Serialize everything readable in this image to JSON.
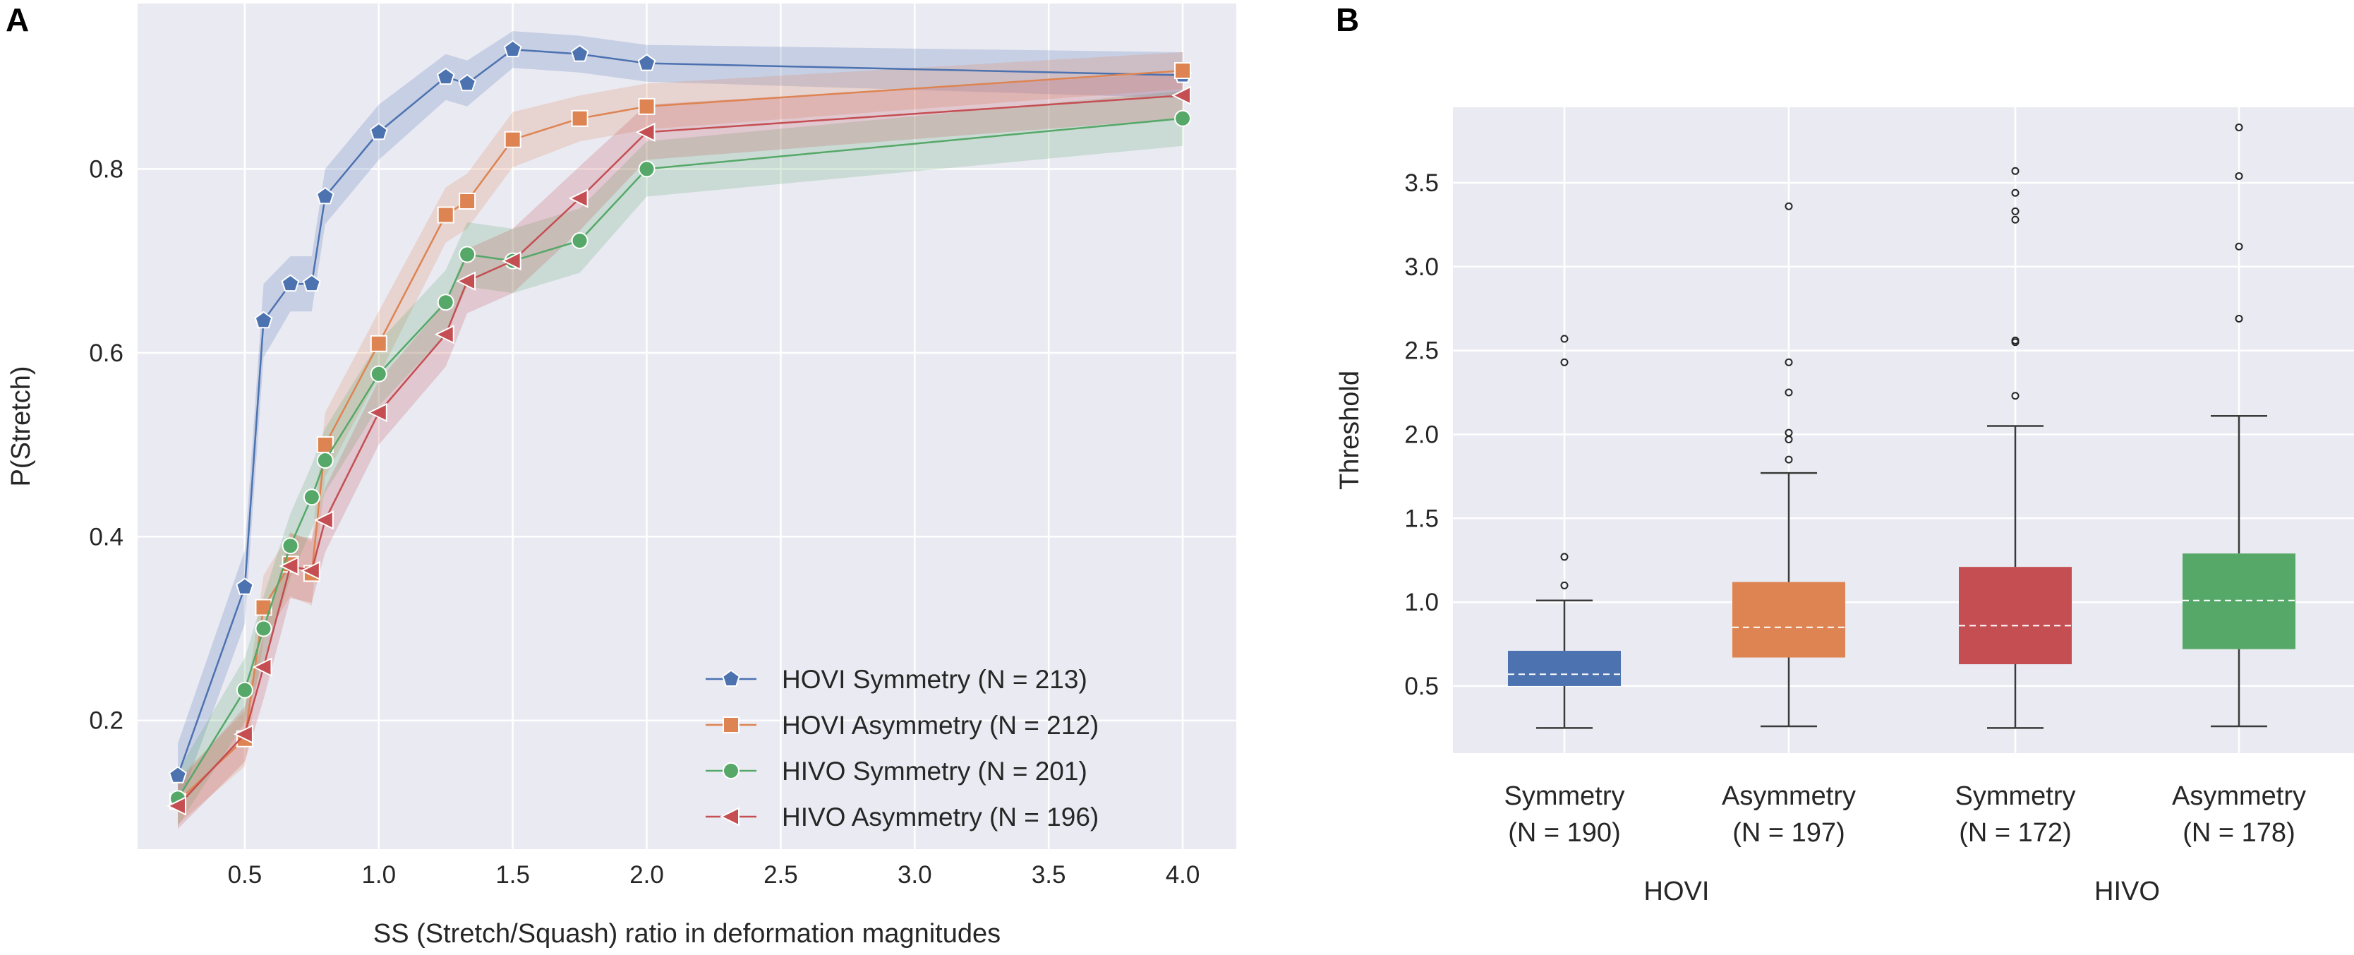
{
  "panels": {
    "a": "A",
    "b": "B"
  },
  "chart_data": [
    {
      "type": "line",
      "xlabel": "SS (Stretch/Squash) ratio in deformation magnitudes",
      "ylabel": "P(Stretch)",
      "xlim": [
        0.1,
        4.2
      ],
      "ylim": [
        0.06,
        0.98
      ],
      "xticks": [
        0.5,
        1.0,
        1.5,
        2.0,
        2.5,
        3.0,
        3.5,
        4.0
      ],
      "xtick_labels": [
        "0.5",
        "1.0",
        "1.5",
        "2.0",
        "2.5",
        "3.0",
        "3.5",
        "4.0"
      ],
      "yticks": [
        0.2,
        0.4,
        0.6,
        0.8
      ],
      "ytick_labels": [
        "0.2",
        "0.4",
        "0.6",
        "0.8"
      ],
      "grid": true,
      "legend_position": "lower-right",
      "series": [
        {
          "name": "HOVI Symmetry (N = 213)",
          "marker": "pentagon",
          "color": "#4C72B0",
          "x": [
            0.25,
            0.5,
            0.57,
            0.67,
            0.75,
            0.8,
            1.0,
            1.25,
            1.33,
            1.5,
            1.75,
            2.0,
            4.0
          ],
          "y": [
            0.14,
            0.345,
            0.635,
            0.675,
            0.675,
            0.77,
            0.84,
            0.9,
            0.893,
            0.93,
            0.925,
            0.915,
            0.902
          ],
          "band": [
            0.035,
            0.04,
            0.04,
            0.03,
            0.03,
            0.03,
            0.03,
            0.025,
            0.025,
            0.02,
            0.02,
            0.02,
            0.025
          ]
        },
        {
          "name": "HOVI Asymmetry (N = 212)",
          "marker": "square",
          "color": "#DD8452",
          "x": [
            0.25,
            0.5,
            0.57,
            0.67,
            0.75,
            0.8,
            1.0,
            1.25,
            1.33,
            1.5,
            1.75,
            2.0,
            4.0
          ],
          "y": [
            0.112,
            0.18,
            0.323,
            0.37,
            0.36,
            0.5,
            0.61,
            0.75,
            0.765,
            0.832,
            0.855,
            0.868,
            0.907
          ],
          "band": [
            0.025,
            0.03,
            0.035,
            0.035,
            0.035,
            0.035,
            0.035,
            0.03,
            0.03,
            0.03,
            0.025,
            0.025,
            0.02
          ]
        },
        {
          "name": "HIVO Symmetry (N = 201)",
          "marker": "circle",
          "color": "#55A868",
          "x": [
            0.25,
            0.5,
            0.57,
            0.67,
            0.75,
            0.8,
            1.0,
            1.25,
            1.33,
            1.5,
            1.75,
            2.0,
            4.0
          ],
          "y": [
            0.115,
            0.233,
            0.3,
            0.39,
            0.443,
            0.483,
            0.577,
            0.655,
            0.707,
            0.7,
            0.722,
            0.8,
            0.855
          ],
          "band": [
            0.03,
            0.035,
            0.035,
            0.035,
            0.035,
            0.035,
            0.035,
            0.035,
            0.035,
            0.035,
            0.035,
            0.03,
            0.03
          ]
        },
        {
          "name": "HIVO Asymmetry (N = 196)",
          "marker": "triangle-left",
          "color": "#C44E52",
          "x": [
            0.25,
            0.5,
            0.57,
            0.67,
            0.75,
            0.8,
            1.0,
            1.25,
            1.33,
            1.5,
            1.75,
            2.0,
            4.0
          ],
          "y": [
            0.107,
            0.185,
            0.258,
            0.368,
            0.363,
            0.418,
            0.535,
            0.62,
            0.678,
            0.7,
            0.768,
            0.84,
            0.88
          ],
          "band": [
            0.025,
            0.03,
            0.035,
            0.035,
            0.035,
            0.035,
            0.035,
            0.035,
            0.035,
            0.035,
            0.035,
            0.03,
            0.025
          ]
        }
      ]
    },
    {
      "type": "box",
      "ylabel": "Threshold",
      "ylim": [
        0.1,
        3.95
      ],
      "yticks": [
        0.5,
        1.0,
        1.5,
        2.0,
        2.5,
        3.0,
        3.5
      ],
      "ytick_labels": [
        "0.5",
        "1.0",
        "1.5",
        "2.0",
        "2.5",
        "3.0",
        "3.5"
      ],
      "grid": true,
      "group_labels": [
        "HOVI",
        "HIVO"
      ],
      "boxes": [
        {
          "label": "Symmetry",
          "n_label": "(N = 190)",
          "group": "HOVI",
          "color": "#4C72B0",
          "whisker_low": 0.25,
          "q1": 0.5,
          "median": 0.57,
          "q3": 0.71,
          "whisker_high": 1.01,
          "outliers": [
            1.1,
            1.27,
            2.43,
            2.57
          ]
        },
        {
          "label": "Asymmetry",
          "n_label": "(N = 197)",
          "group": "HOVI",
          "color": "#DD8452",
          "whisker_low": 0.26,
          "q1": 0.67,
          "median": 0.85,
          "q3": 1.12,
          "whisker_high": 1.77,
          "outliers": [
            1.85,
            1.97,
            2.01,
            2.25,
            2.43,
            3.36
          ]
        },
        {
          "label": "Symmetry",
          "n_label": "(N = 172)",
          "group": "HIVO",
          "color": "#C44E52",
          "whisker_low": 0.25,
          "q1": 0.63,
          "median": 0.86,
          "q3": 1.21,
          "whisker_high": 2.05,
          "outliers": [
            2.23,
            2.55,
            2.56,
            3.28,
            3.33,
            3.44,
            3.57
          ]
        },
        {
          "label": "Asymmetry",
          "n_label": "(N = 178)",
          "group": "HIVO",
          "color": "#55A868",
          "whisker_low": 0.26,
          "q1": 0.72,
          "median": 1.01,
          "q3": 1.29,
          "whisker_high": 2.11,
          "outliers": [
            2.69,
            3.12,
            3.54,
            3.83
          ]
        }
      ]
    }
  ]
}
